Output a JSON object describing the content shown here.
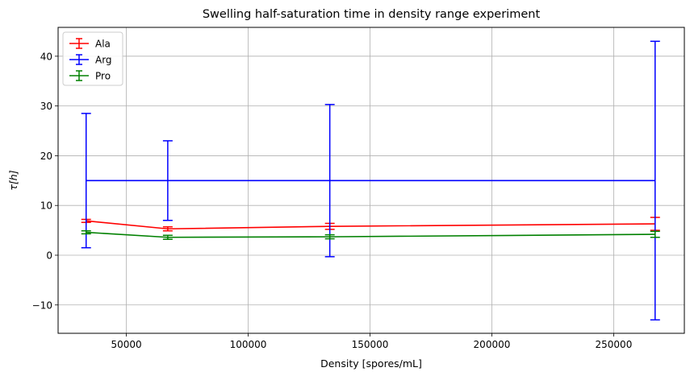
{
  "chart_data": {
    "type": "line",
    "title": "Swelling half-saturation time in density range experiment",
    "xlabel": "Density [spores/mL]",
    "ylabel": "τ[h]",
    "xlim": [
      22000,
      279000
    ],
    "ylim": [
      -15.7,
      45.8
    ],
    "x": [
      33500,
      67000,
      133500,
      267000
    ],
    "xticks": [
      50000,
      100000,
      150000,
      200000,
      250000
    ],
    "xtick_labels": [
      "50000",
      "100000",
      "150000",
      "200000",
      "250000"
    ],
    "yticks": [
      -10,
      0,
      10,
      20,
      30,
      40
    ],
    "ytick_labels": [
      "−10",
      "0",
      "10",
      "20",
      "30",
      "40"
    ],
    "grid": true,
    "legend_position": "top-left",
    "series": [
      {
        "name": "Ala",
        "color": "#ff0000",
        "values": [
          6.9,
          5.3,
          5.8,
          6.3
        ],
        "errors": [
          0.3,
          0.4,
          0.6,
          1.3
        ]
      },
      {
        "name": "Arg",
        "color": "#0000ff",
        "values": [
          15.0,
          15.0,
          15.0,
          15.0
        ],
        "errors": [
          13.5,
          8.0,
          15.3,
          28.0
        ]
      },
      {
        "name": "Pro",
        "color": "#008000",
        "values": [
          4.6,
          3.6,
          3.7,
          4.2
        ],
        "errors": [
          0.3,
          0.4,
          0.4,
          0.6
        ]
      }
    ]
  }
}
